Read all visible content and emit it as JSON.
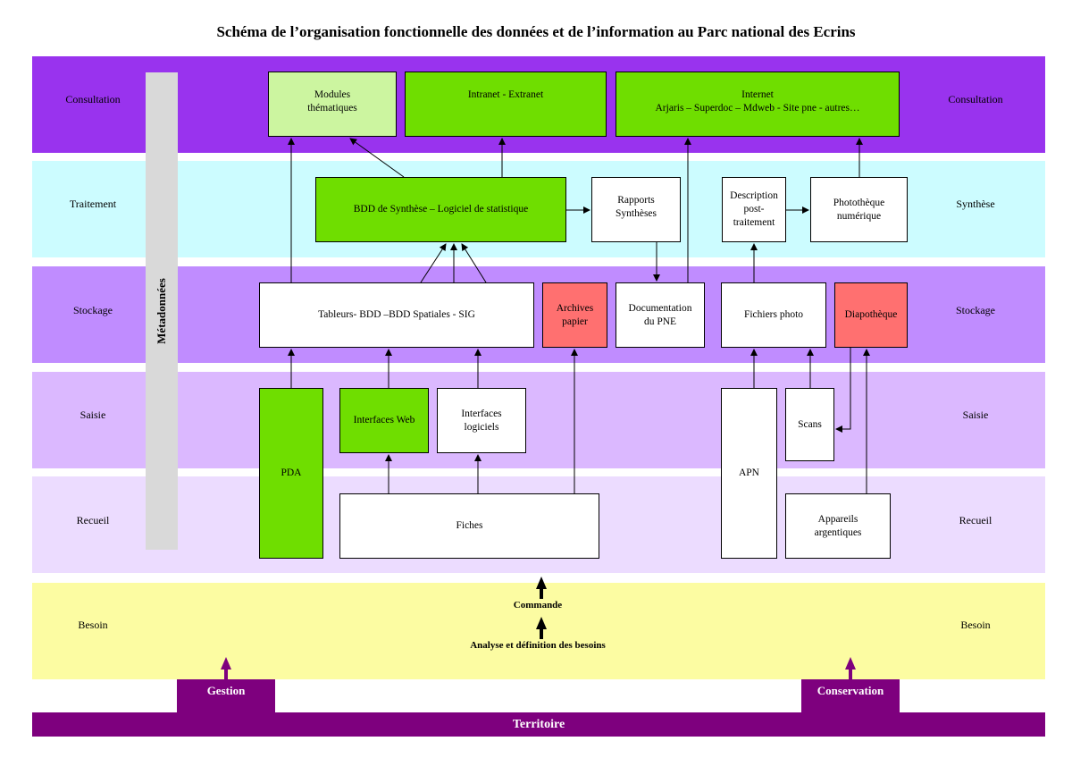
{
  "title": "Schéma de l’organisation fonctionnelle des données et de l’information au Parc national des Ecrins",
  "colors": {
    "consultation": "#9933ee",
    "traitement": "#ccfcff",
    "stockage": "#c08cff",
    "saisie": "#dbb8ff",
    "recueil": "#ecdcff",
    "besoin": "#fcfca2",
    "territoire": "#7e007e",
    "green": "#6fde00",
    "lightgreen": "#ccf5a0",
    "red": "#ff7070"
  },
  "layers": {
    "consultation": {
      "left": "Consultation",
      "right": "Consultation"
    },
    "traitement": {
      "left": "Traitement",
      "right": "Synthèse"
    },
    "stockage": {
      "left": "Stockage",
      "right": "Stockage"
    },
    "saisie": {
      "left": "Saisie",
      "right": "Saisie"
    },
    "recueil": {
      "left": "Recueil",
      "right": "Recueil"
    },
    "besoin": {
      "left": "Besoin",
      "right": "Besoin"
    }
  },
  "metadonnees": "Métadonnées",
  "boxes": {
    "modules": "Modules\nthématiques",
    "intranet": "Intranet - Extranet",
    "internet": "Internet\nArjaris – Superdoc – Mdweb - Site pne - autres…",
    "bdd_synthese": "BDD de Synthèse – Logiciel de statistique",
    "rapports": "Rapports\nSynthèses",
    "description": "Description\npost-\ntraitement",
    "phototheque": "Photothèque\nnumérique",
    "tableurs": "Tableurs- BDD –BDD Spatiales - SIG",
    "archives": "Archives\npapier",
    "documentation": "Documentation\ndu PNE",
    "fichiers_photo": "Fichiers photo",
    "diapotheque": "Diapothèque",
    "pda": "PDA",
    "interfaces_web": "Interfaces Web",
    "interfaces_logiciels": "Interfaces\nlogiciels",
    "apn": "APN",
    "scans": "Scans",
    "fiches": "Fiches",
    "appareils": "Appareils\nargentiques"
  },
  "besoin_labels": {
    "commande": "Commande",
    "analyse": "Analyse et définition des besoins"
  },
  "gestion": "Gestion",
  "conservation": "Conservation",
  "territoire": "Territoire"
}
